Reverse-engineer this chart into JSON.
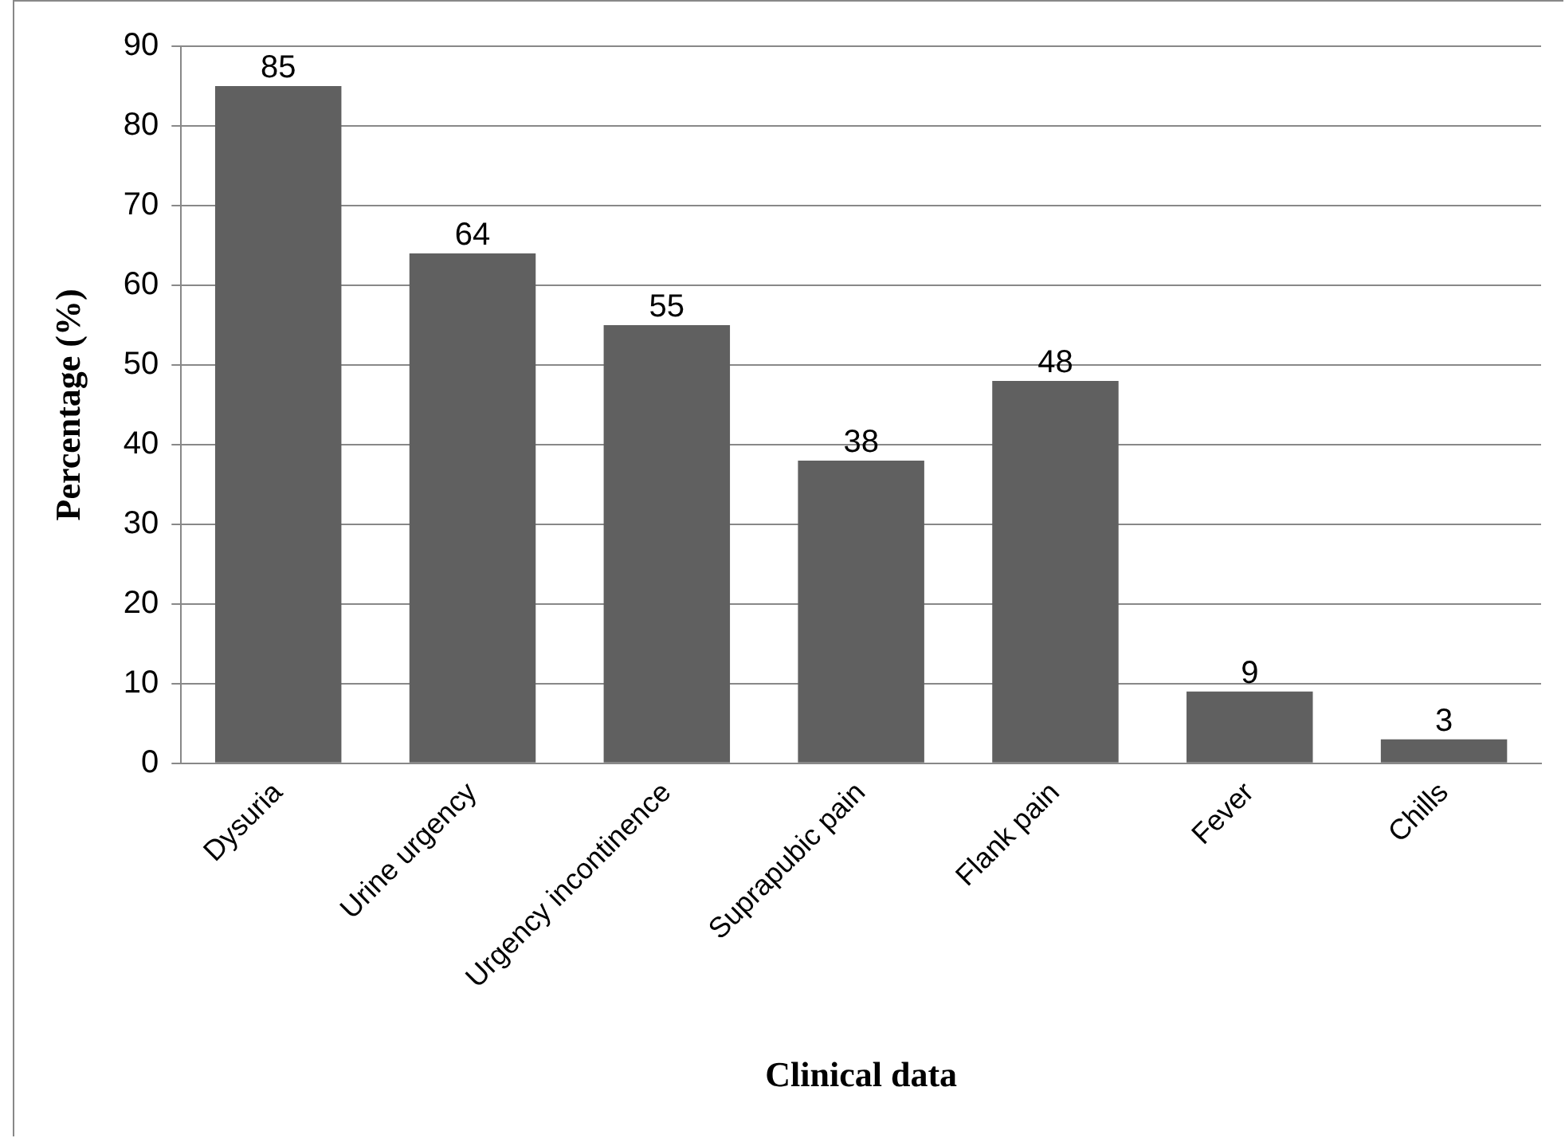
{
  "chart_data": {
    "type": "bar",
    "xlabel": "Clinical data",
    "ylabel": "Percentage (%)",
    "categories": [
      "Dysuria",
      "Urine urgency",
      "Urgency incontinence",
      "Suprapubic pain",
      "Flank pain",
      "Fever",
      "Chills"
    ],
    "values": [
      85,
      64,
      55,
      38,
      48,
      9,
      3
    ],
    "color": "#606060",
    "ylim": [
      0,
      90
    ],
    "yticks": [
      0,
      10,
      20,
      30,
      40,
      50,
      60,
      70,
      80,
      90
    ],
    "grid": "y",
    "data_labels": true
  }
}
